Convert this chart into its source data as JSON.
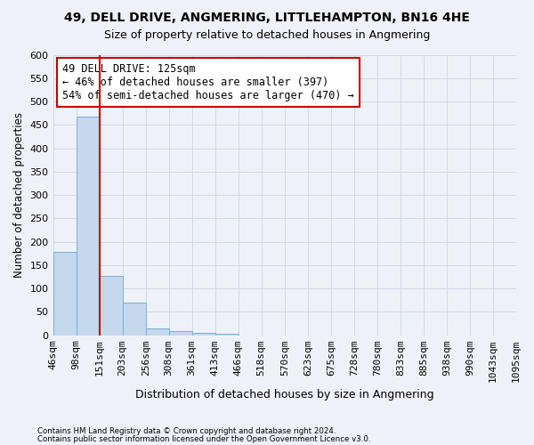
{
  "title1": "49, DELL DRIVE, ANGMERING, LITTLEHAMPTON, BN16 4HE",
  "title2": "Size of property relative to detached houses in Angmering",
  "xlabel": "Distribution of detached houses by size in Angmering",
  "ylabel": "Number of detached properties",
  "footnote1": "Contains HM Land Registry data © Crown copyright and database right 2024.",
  "footnote2": "Contains public sector information licensed under the Open Government Licence v3.0.",
  "bin_labels": [
    "46sqm",
    "98sqm",
    "151sqm",
    "203sqm",
    "256sqm",
    "308sqm",
    "361sqm",
    "413sqm",
    "466sqm",
    "518sqm",
    "570sqm",
    "623sqm",
    "675sqm",
    "728sqm",
    "780sqm",
    "833sqm",
    "885sqm",
    "938sqm",
    "990sqm",
    "1043sqm",
    "1095sqm"
  ],
  "bar_heights": [
    178,
    468,
    127,
    70,
    15,
    8,
    5,
    3,
    0,
    0,
    0,
    0,
    0,
    0,
    0,
    0,
    0,
    0,
    0,
    0
  ],
  "bar_color": "#c5d8ed",
  "bar_edge_color": "#7bafd4",
  "grid_color": "#d0d8e4",
  "background_color": "#eef2f8",
  "vline_color": "#cc0000",
  "vline_position": 1.5,
  "annotation_text": "49 DELL DRIVE: 125sqm\n← 46% of detached houses are smaller (397)\n54% of semi-detached houses are larger (470) →",
  "annotation_box_facecolor": "#ffffff",
  "annotation_box_edgecolor": "#cc0000",
  "ylim": [
    0,
    600
  ],
  "yticks": [
    0,
    50,
    100,
    150,
    200,
    250,
    300,
    350,
    400,
    450,
    500,
    550,
    600
  ]
}
